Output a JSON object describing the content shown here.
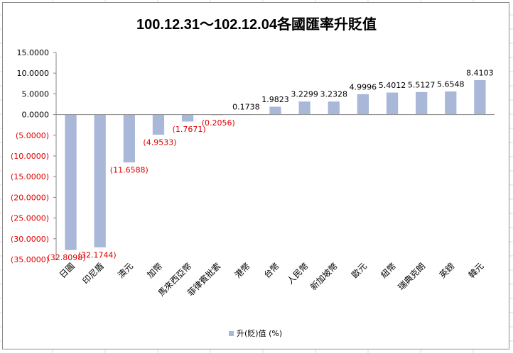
{
  "chart_data": {
    "type": "bar",
    "title": "100.12.31～102.12.04各國匯率升貶值",
    "categories": [
      "日圓",
      "印尼盾",
      "澳元",
      "加幣",
      "馬來西亞幣",
      "菲律賓批索",
      "港幣",
      "台幣",
      "人民幣",
      "新加坡幣",
      "歐元",
      "紐幣",
      "瑞典克朗",
      "英鎊",
      "韓元"
    ],
    "series": [
      {
        "name": "升(貶)值 (%)",
        "values": [
          -32.8098,
          -32.1744,
          -11.6588,
          -4.9533,
          -1.7671,
          -0.2056,
          0.1738,
          1.9823,
          3.2299,
          3.2328,
          4.9996,
          5.4012,
          5.5127,
          5.6548,
          8.4103
        ],
        "labels": [
          "(32.8098)",
          "(32.1744)",
          "(11.6588)",
          "(4.9533)",
          "(1.7671)",
          "(0.2056)",
          "0.1738",
          "1.9823",
          "3.2299",
          "3.2328",
          "4.9996",
          "5.4012",
          "5.5127",
          "5.6548",
          "8.4103"
        ]
      }
    ],
    "ylim": [
      -35,
      15
    ],
    "yticks": [
      15,
      10,
      5,
      0,
      -5,
      -10,
      -15,
      -20,
      -25,
      -30,
      -35
    ],
    "ytick_labels": [
      "15.0000",
      "10.0000",
      "5.0000",
      "0.0000",
      "(5.0000)",
      "(10.0000)",
      "(15.0000)",
      "(20.0000)",
      "(25.0000)",
      "(30.0000)",
      "(35.0000)"
    ],
    "grid": false,
    "legend_position": "bottom",
    "colors": {
      "bar": "#a9b8d8",
      "bar_edge": "#ffffff",
      "negative_text": "#e00000",
      "positive_text": "#000000",
      "axis": "#868686"
    }
  }
}
